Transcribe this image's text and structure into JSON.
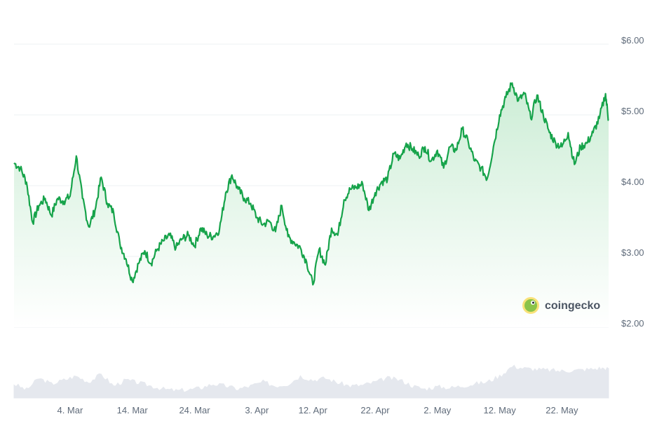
{
  "chart_data": {
    "type": "area",
    "ylim": [
      2.0,
      6.0
    ],
    "y_ticks": [
      2,
      3,
      4,
      5,
      6
    ],
    "y_tick_labels": [
      "$2.00",
      "$3.00",
      "$4.00",
      "$5.00",
      "$6.00"
    ],
    "x_ticks": [
      "4. Mar",
      "14. Mar",
      "24. Mar",
      "3. Apr",
      "12. Apr",
      "22. Apr",
      "2. May",
      "12. May",
      "22. May"
    ],
    "x_tick_days": [
      9,
      19,
      29,
      39,
      48,
      58,
      68,
      78,
      88
    ],
    "x_range_days": [
      0,
      93
    ],
    "grid": true,
    "colors": {
      "line": "#16a34a",
      "area_top": "#c9ecd3",
      "volume": "#e5e8ee",
      "grid": "#eef0f3"
    },
    "series": [
      {
        "points": [
          [
            0,
            4.32
          ],
          [
            1,
            4.25
          ],
          [
            2,
            4.05
          ],
          [
            3,
            3.48
          ],
          [
            4,
            3.72
          ],
          [
            5,
            3.82
          ],
          [
            6,
            3.58
          ],
          [
            7,
            3.82
          ],
          [
            8,
            3.78
          ],
          [
            9,
            3.85
          ],
          [
            10,
            4.42
          ],
          [
            11,
            3.82
          ],
          [
            12,
            3.42
          ],
          [
            13,
            3.65
          ],
          [
            14,
            4.12
          ],
          [
            15,
            3.75
          ],
          [
            16,
            3.62
          ],
          [
            17,
            3.18
          ],
          [
            18,
            2.96
          ],
          [
            19,
            2.65
          ],
          [
            20,
            2.9
          ],
          [
            21,
            3.08
          ],
          [
            22,
            2.9
          ],
          [
            23,
            3.1
          ],
          [
            24,
            3.22
          ],
          [
            25,
            3.3
          ],
          [
            26,
            3.12
          ],
          [
            27,
            3.25
          ],
          [
            28,
            3.3
          ],
          [
            29,
            3.15
          ],
          [
            30,
            3.4
          ],
          [
            31,
            3.3
          ],
          [
            32,
            3.28
          ],
          [
            33,
            3.38
          ],
          [
            34,
            3.9
          ],
          [
            35,
            4.15
          ],
          [
            36,
            3.95
          ],
          [
            37,
            3.82
          ],
          [
            38,
            3.75
          ],
          [
            39,
            3.55
          ],
          [
            40,
            3.45
          ],
          [
            41,
            3.5
          ],
          [
            42,
            3.35
          ],
          [
            43,
            3.72
          ],
          [
            44,
            3.28
          ],
          [
            45,
            3.2
          ],
          [
            46,
            3.12
          ],
          [
            47,
            2.92
          ],
          [
            48,
            2.6
          ],
          [
            49,
            3.1
          ],
          [
            50,
            2.88
          ],
          [
            51,
            3.4
          ],
          [
            52,
            3.3
          ],
          [
            53,
            3.8
          ],
          [
            54,
            3.95
          ],
          [
            55,
            3.98
          ],
          [
            56,
            4.02
          ],
          [
            57,
            3.65
          ],
          [
            58,
            3.9
          ],
          [
            59,
            4.05
          ],
          [
            60,
            4.1
          ],
          [
            61,
            4.45
          ],
          [
            62,
            4.38
          ],
          [
            63,
            4.6
          ],
          [
            64,
            4.52
          ],
          [
            65,
            4.42
          ],
          [
            66,
            4.55
          ],
          [
            67,
            4.35
          ],
          [
            68,
            4.5
          ],
          [
            69,
            4.25
          ],
          [
            70,
            4.55
          ],
          [
            71,
            4.5
          ],
          [
            72,
            4.8
          ],
          [
            73,
            4.6
          ],
          [
            74,
            4.35
          ],
          [
            75,
            4.25
          ],
          [
            76,
            4.1
          ],
          [
            77,
            4.55
          ],
          [
            78,
            5.0
          ],
          [
            79,
            5.25
          ],
          [
            80,
            5.45
          ],
          [
            81,
            5.2
          ],
          [
            82,
            5.3
          ],
          [
            83,
            4.95
          ],
          [
            84,
            5.28
          ],
          [
            85,
            5.0
          ],
          [
            86,
            4.75
          ],
          [
            87,
            4.6
          ],
          [
            88,
            4.55
          ],
          [
            89,
            4.75
          ],
          [
            90,
            4.3
          ],
          [
            91,
            4.55
          ],
          [
            92,
            4.6
          ],
          [
            93,
            4.75
          ],
          [
            94,
            4.95
          ],
          [
            95,
            5.3
          ],
          [
            95.5,
            4.92
          ]
        ]
      }
    ],
    "volume": [
      [
        0,
        0.35
      ],
      [
        2,
        0.2
      ],
      [
        4,
        0.5
      ],
      [
        6,
        0.35
      ],
      [
        8,
        0.45
      ],
      [
        10,
        0.55
      ],
      [
        12,
        0.4
      ],
      [
        14,
        0.6
      ],
      [
        16,
        0.3
      ],
      [
        18,
        0.45
      ],
      [
        20,
        0.38
      ],
      [
        22,
        0.3
      ],
      [
        24,
        0.22
      ],
      [
        26,
        0.18
      ],
      [
        28,
        0.2
      ],
      [
        30,
        0.25
      ],
      [
        32,
        0.35
      ],
      [
        34,
        0.3
      ],
      [
        36,
        0.22
      ],
      [
        38,
        0.3
      ],
      [
        40,
        0.4
      ],
      [
        42,
        0.3
      ],
      [
        44,
        0.35
      ],
      [
        46,
        0.55
      ],
      [
        48,
        0.45
      ],
      [
        50,
        0.5
      ],
      [
        52,
        0.38
      ],
      [
        54,
        0.3
      ],
      [
        56,
        0.32
      ],
      [
        58,
        0.4
      ],
      [
        60,
        0.5
      ],
      [
        62,
        0.45
      ],
      [
        64,
        0.3
      ],
      [
        66,
        0.22
      ],
      [
        68,
        0.28
      ],
      [
        70,
        0.25
      ],
      [
        72,
        0.3
      ],
      [
        74,
        0.35
      ],
      [
        76,
        0.4
      ],
      [
        78,
        0.55
      ],
      [
        80,
        0.8
      ],
      [
        82,
        0.75
      ],
      [
        84,
        0.72
      ],
      [
        86,
        0.7
      ],
      [
        88,
        0.68
      ],
      [
        90,
        0.7
      ],
      [
        92,
        0.72
      ],
      [
        94,
        0.75
      ],
      [
        95.5,
        0.75
      ]
    ]
  },
  "watermark": {
    "label": "coingecko",
    "icon": "gecko-logo-icon"
  }
}
